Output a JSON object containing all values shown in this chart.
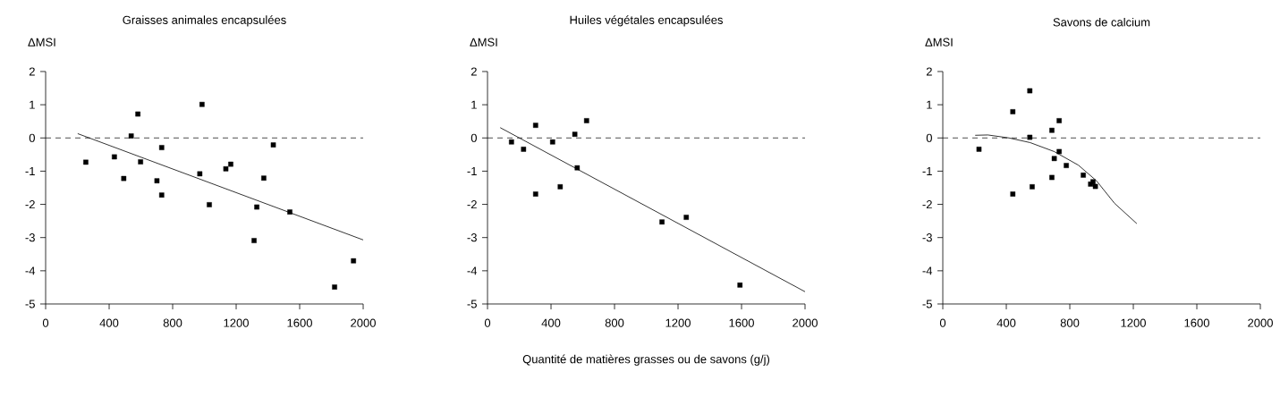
{
  "chart_data": [
    {
      "type": "scatter",
      "title": "Graisses animales encapsulées",
      "ylabel": "ΔMSI",
      "xlim": [
        0,
        2000
      ],
      "ylim": [
        -5,
        2
      ],
      "xticks": [
        0,
        400,
        800,
        1200,
        1600,
        2000
      ],
      "yticks": [
        -5,
        -4,
        -3,
        -2,
        -1,
        0,
        1,
        2
      ],
      "ref_lines": [
        {
          "axis": "y",
          "value": 0,
          "line_style": "dashed",
          "color": "#000000"
        }
      ],
      "series": [
        {
          "marker": "square",
          "color": "#000000",
          "x": [
            253,
            433,
            492,
            539,
            581,
            598,
            701,
            731,
            731,
            971,
            985,
            1031,
            1135,
            1166,
            1313,
            1330,
            1374,
            1434,
            1538,
            1820,
            1939
          ],
          "values": [
            -0.73,
            -0.57,
            -1.22,
            0.06,
            0.72,
            -0.72,
            -1.29,
            -0.29,
            -1.72,
            -1.08,
            1.01,
            -2.01,
            -0.93,
            -0.79,
            -3.09,
            -2.08,
            -1.21,
            -0.21,
            -2.23,
            -4.49,
            -3.7
          ]
        },
        {
          "type": "line",
          "marker": "none",
          "line_style": "solid",
          "color": "#000000",
          "x": [
            202,
            2000
          ],
          "values": [
            0.13,
            -3.07
          ]
        }
      ]
    },
    {
      "type": "scatter",
      "title": "Huiles végétales encapsulées",
      "ylabel": "ΔMSI",
      "xlabel": "Quantité de matières grasses ou de savons (g/j)",
      "xlim": [
        0,
        2000
      ],
      "ylim": [
        -5,
        2
      ],
      "xticks": [
        0,
        400,
        800,
        1200,
        1600,
        2000
      ],
      "yticks": [
        -5,
        -4,
        -3,
        -2,
        -1,
        0,
        1,
        2
      ],
      "ref_lines": [
        {
          "axis": "y",
          "value": 0,
          "line_style": "dashed",
          "color": "#000000"
        }
      ],
      "series": [
        {
          "marker": "square",
          "color": "#000000",
          "x": [
            151,
            227,
            303,
            303,
            410,
            458,
            550,
            565,
            624,
            1099,
            1252,
            1590
          ],
          "values": [
            -0.12,
            -0.34,
            0.38,
            -1.69,
            -0.12,
            -1.47,
            0.11,
            -0.9,
            0.52,
            -2.53,
            -2.39,
            -4.43
          ]
        },
        {
          "type": "line",
          "marker": "none",
          "line_style": "solid",
          "color": "#000000",
          "x": [
            80,
            2000
          ],
          "values": [
            0.31,
            -4.63
          ]
        }
      ]
    },
    {
      "type": "scatter",
      "title": "Savons de calcium",
      "ylabel": "ΔMSI",
      "xlim": [
        0,
        2000
      ],
      "ylim": [
        -5,
        2
      ],
      "xticks": [
        0,
        400,
        800,
        1200,
        1600,
        2000
      ],
      "yticks": [
        -5,
        -4,
        -3,
        -2,
        -1,
        0,
        1,
        2
      ],
      "ref_lines": [
        {
          "axis": "y",
          "value": 0,
          "line_style": "dashed",
          "color": "#000000"
        }
      ],
      "series": [
        {
          "marker": "square",
          "color": "#000000",
          "x": [
            228,
            441,
            441,
            548,
            548,
            563,
            687,
            687,
            702,
            733,
            733,
            778,
            885,
            931,
            946,
            961
          ],
          "values": [
            -0.34,
            0.79,
            -1.69,
            1.42,
            0.02,
            -1.47,
            0.23,
            -1.19,
            -0.62,
            0.52,
            -0.41,
            -0.83,
            -1.12,
            -1.39,
            -1.32,
            -1.46
          ]
        },
        {
          "type": "line",
          "marker": "none",
          "line_style": "solid",
          "color": "#000000",
          "x": [
            204,
            284,
            417,
            550,
            702,
            854,
            968,
            1082,
            1222
          ],
          "values": [
            0.08,
            0.09,
            0,
            -0.14,
            -0.41,
            -0.82,
            -1.29,
            -1.97,
            -2.58
          ]
        }
      ]
    }
  ]
}
